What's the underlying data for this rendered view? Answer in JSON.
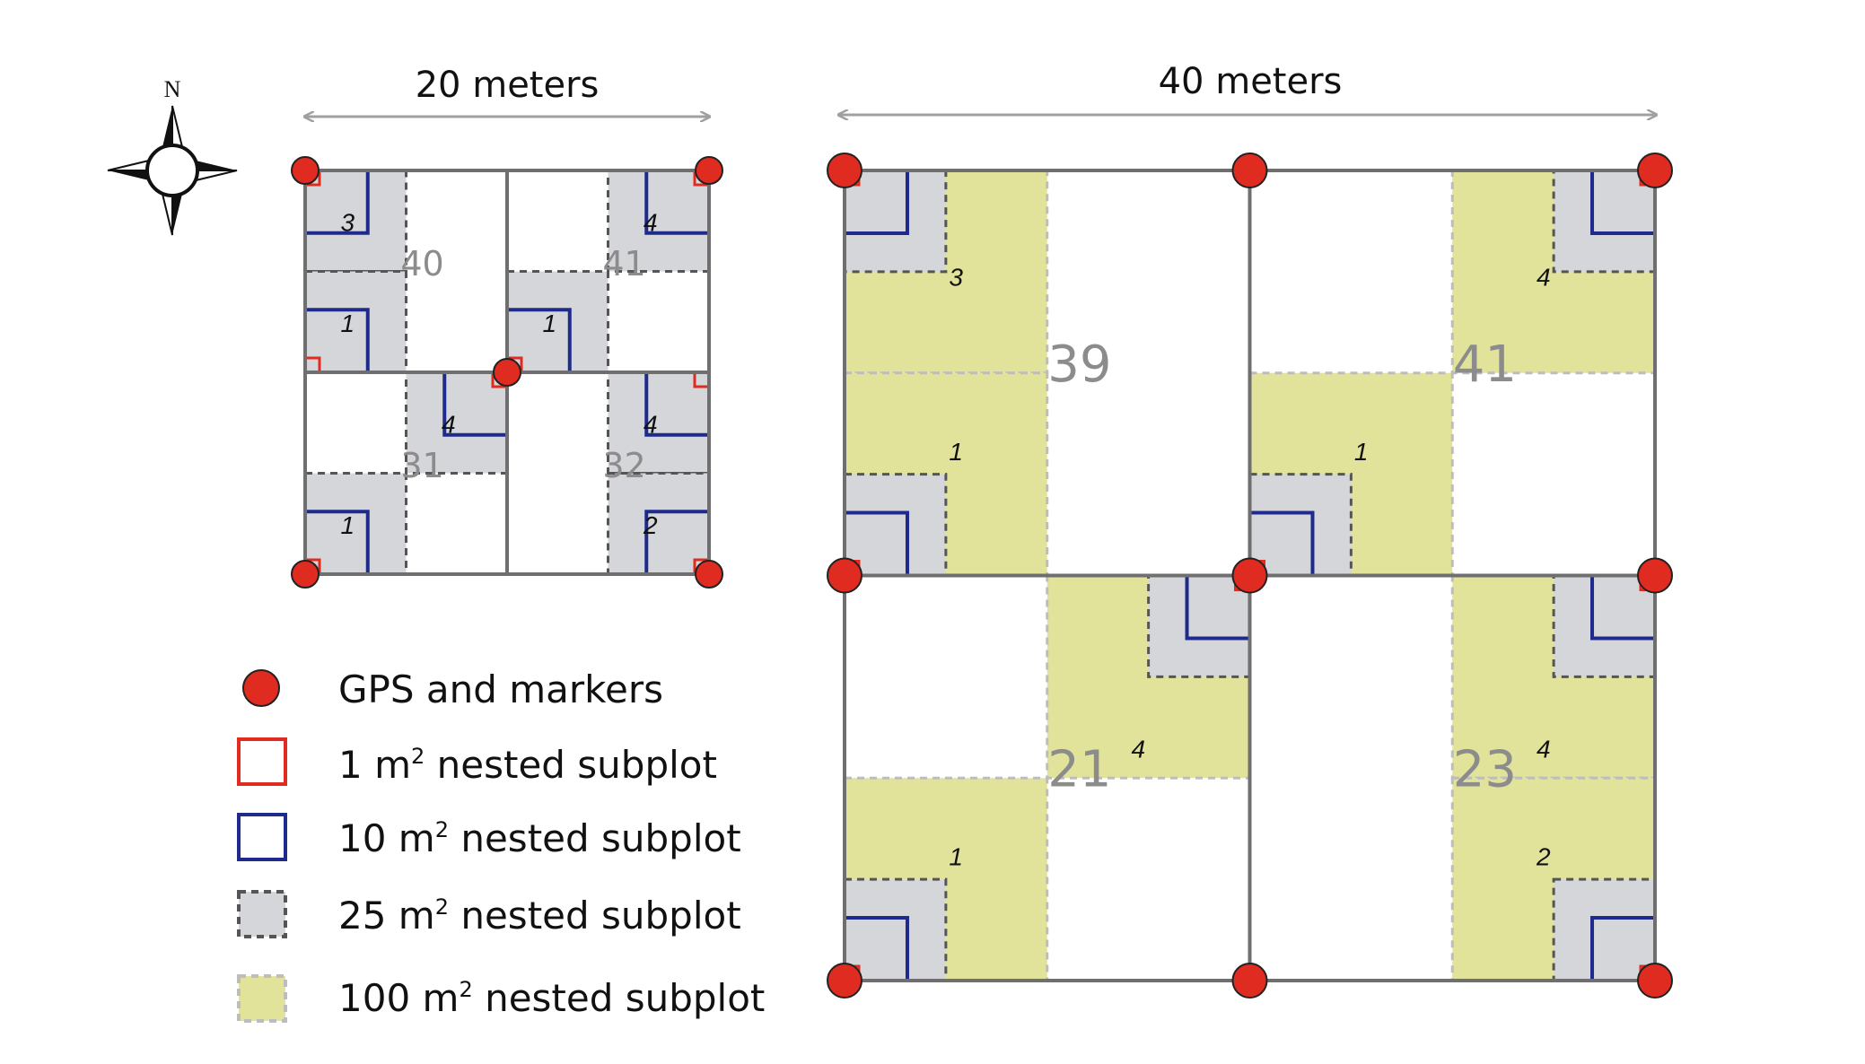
{
  "diagram": {
    "compass": {
      "label": "N",
      "icon": "compass-rose-icon"
    },
    "small_plot": {
      "width_label": "20 meters",
      "plots": [
        {
          "id": "40",
          "subplots": [
            "3",
            "1"
          ]
        },
        {
          "id": "41",
          "subplots": [
            "4",
            "1"
          ]
        },
        {
          "id": "31",
          "subplots": [
            "4",
            "1"
          ]
        },
        {
          "id": "32",
          "subplots": [
            "4",
            "2"
          ]
        }
      ]
    },
    "large_plot": {
      "width_label": "40 meters",
      "plots": [
        {
          "id": "39",
          "subplots": [
            "3",
            "1"
          ]
        },
        {
          "id": "41",
          "subplots": [
            "4",
            "1"
          ]
        },
        {
          "id": "21",
          "subplots": [
            "4",
            "1"
          ]
        },
        {
          "id": "23",
          "subplots": [
            "4",
            "2"
          ]
        }
      ]
    },
    "legend": [
      {
        "text": "GPS and markers",
        "color": "#e02b20"
      },
      {
        "prefix": "1 m",
        "sup": "2",
        "suffix": " nested subplot",
        "color": "#e02b20"
      },
      {
        "prefix": "10 m",
        "sup": "2",
        "suffix": " nested subplot",
        "color": "#1e2a8c"
      },
      {
        "prefix": "25 m",
        "sup": "2",
        "suffix": " nested subplot",
        "color": "#d4d6da"
      },
      {
        "prefix": "100 m",
        "sup": "2",
        "suffix": " nested subplot",
        "color": "#e1e39a"
      }
    ],
    "colors": {
      "marker": "#e02b20",
      "one_m2": "#e02b20",
      "ten_m2": "#1e2a8c",
      "twentyfive_m2": "#d4d6da",
      "hundred_m2": "#e1e39a",
      "grid": "#6f6f6f",
      "arrow": "#a0a0a0",
      "plot_number": "#8c8c8c"
    }
  }
}
